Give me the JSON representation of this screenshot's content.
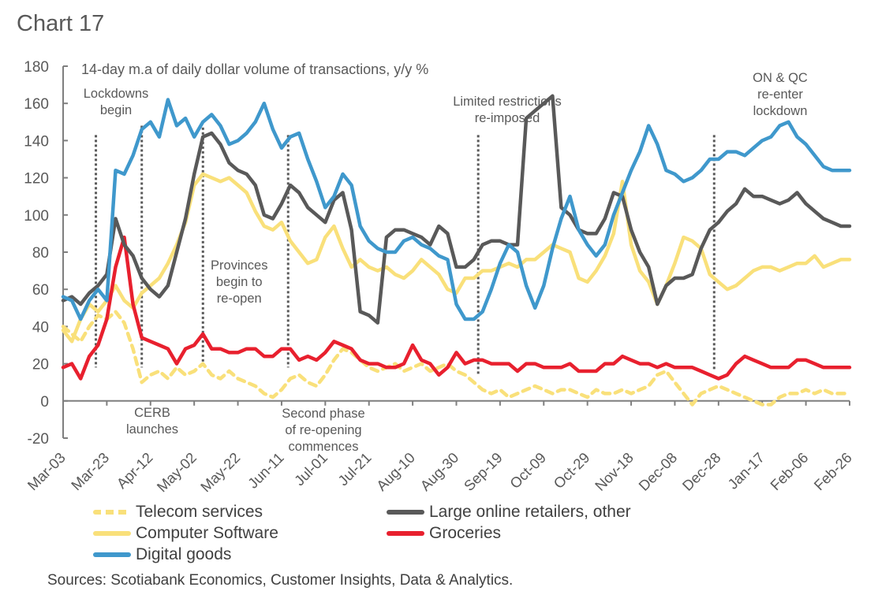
{
  "chart_title": "Chart 17",
  "source_note": "Sources: Scotiabank Economics, Customer Insights, Data & Analytics.",
  "chart_data": {
    "type": "line",
    "title": "Chart 17",
    "subtitle": "14-day m.a of daily dollar volume of transactions, y/y %",
    "xlabel": "",
    "ylabel": "",
    "ylim": [
      -20,
      180
    ],
    "yticks": [
      -20,
      0,
      20,
      40,
      60,
      80,
      100,
      120,
      140,
      160,
      180
    ],
    "ytick_labels": [
      "-20",
      "0",
      "20",
      "40",
      "60",
      "80",
      "100",
      "120",
      "140",
      "160",
      "180"
    ],
    "x_unit": "days since Mar-03",
    "xlim": [
      0,
      360
    ],
    "xticks": [
      0,
      20,
      40,
      60,
      80,
      100,
      120,
      140,
      160,
      180,
      200,
      220,
      240,
      260,
      280,
      300,
      320,
      340,
      360
    ],
    "xtick_labels": [
      "Mar-03",
      "Mar-23",
      "Apr-12",
      "May-02",
      "May-22",
      "Jun-11",
      "Jul-01",
      "Jul-21",
      "Aug-10",
      "Aug-30",
      "Sep-19",
      "Oct-09",
      "Oct-29",
      "Nov-18",
      "Dec-08",
      "Dec-28",
      "Jan-17",
      "Feb-06",
      "Feb-26"
    ],
    "grid": false,
    "legend_position": "bottom",
    "x": [
      0,
      4,
      8,
      12,
      16,
      20,
      24,
      28,
      32,
      36,
      40,
      44,
      48,
      52,
      56,
      60,
      64,
      68,
      72,
      76,
      80,
      84,
      88,
      92,
      96,
      100,
      104,
      108,
      112,
      116,
      120,
      124,
      128,
      132,
      136,
      140,
      144,
      148,
      152,
      156,
      160,
      164,
      168,
      172,
      176,
      180,
      184,
      188,
      192,
      196,
      200,
      204,
      208,
      212,
      216,
      220,
      224,
      228,
      232,
      236,
      240,
      244,
      248,
      252,
      256,
      260,
      264,
      268,
      272,
      276,
      280,
      284,
      288,
      292,
      296,
      300,
      304,
      308,
      312,
      316,
      320,
      324,
      328,
      332,
      336,
      340,
      344,
      348,
      352,
      356,
      360
    ],
    "series": [
      {
        "name": "Telecom services",
        "color": "#F9E07A",
        "style": "dashed",
        "values": [
          40,
          36,
          32,
          40,
          46,
          44,
          48,
          42,
          28,
          10,
          14,
          16,
          12,
          18,
          14,
          16,
          20,
          14,
          12,
          16,
          12,
          10,
          8,
          4,
          2,
          6,
          12,
          14,
          10,
          8,
          14,
          22,
          28,
          26,
          22,
          18,
          16,
          18,
          20,
          16,
          18,
          20,
          16,
          18,
          20,
          16,
          14,
          10,
          6,
          4,
          6,
          2,
          4,
          6,
          8,
          6,
          4,
          6,
          6,
          4,
          2,
          6,
          4,
          4,
          6,
          4,
          6,
          8,
          14,
          16,
          10,
          4,
          -2,
          4,
          6,
          8,
          6,
          4,
          2,
          0,
          -2,
          -2,
          2,
          4,
          4,
          6,
          4,
          6,
          4,
          4,
          4
        ]
      },
      {
        "name": "Large online retailers, other",
        "color": "#595959",
        "style": "solid",
        "values": [
          54,
          56,
          52,
          58,
          62,
          68,
          98,
          84,
          78,
          66,
          60,
          56,
          62,
          80,
          98,
          122,
          142,
          144,
          138,
          128,
          124,
          122,
          116,
          100,
          98,
          106,
          116,
          112,
          104,
          100,
          96,
          108,
          112,
          92,
          48,
          46,
          42,
          88,
          92,
          92,
          90,
          88,
          84,
          94,
          90,
          72,
          72,
          76,
          84,
          86,
          86,
          84,
          84,
          152,
          156,
          160,
          164,
          104,
          100,
          92,
          90,
          90,
          98,
          112,
          110,
          92,
          80,
          72,
          52,
          62,
          66,
          66,
          68,
          82,
          92,
          96,
          102,
          106,
          114,
          110,
          110,
          108,
          106,
          108,
          112,
          106,
          102,
          98,
          96,
          94,
          94
        ]
      },
      {
        "name": "Computer Software",
        "color": "#F9E07A",
        "style": "solid",
        "values": [
          38,
          32,
          44,
          52,
          48,
          54,
          62,
          54,
          50,
          58,
          62,
          66,
          74,
          84,
          96,
          116,
          122,
          120,
          118,
          120,
          116,
          112,
          102,
          94,
          92,
          96,
          86,
          80,
          74,
          76,
          88,
          94,
          82,
          72,
          76,
          72,
          70,
          72,
          68,
          66,
          70,
          76,
          72,
          68,
          60,
          58,
          66,
          66,
          70,
          70,
          72,
          74,
          72,
          76,
          76,
          80,
          84,
          82,
          80,
          66,
          64,
          70,
          78,
          90,
          118,
          84,
          70,
          64,
          52,
          62,
          74,
          88,
          86,
          82,
          68,
          64,
          60,
          62,
          66,
          70,
          72,
          72,
          70,
          72,
          74,
          74,
          78,
          72,
          74,
          76,
          76
        ]
      },
      {
        "name": "Groceries",
        "color": "#E8202E",
        "style": "solid",
        "values": [
          18,
          20,
          12,
          24,
          30,
          44,
          72,
          88,
          52,
          34,
          32,
          30,
          28,
          20,
          28,
          30,
          36,
          28,
          28,
          26,
          26,
          28,
          28,
          24,
          24,
          28,
          28,
          22,
          24,
          22,
          26,
          32,
          30,
          28,
          22,
          20,
          20,
          18,
          18,
          20,
          30,
          22,
          20,
          14,
          18,
          26,
          20,
          22,
          22,
          20,
          20,
          20,
          16,
          20,
          20,
          18,
          18,
          18,
          20,
          16,
          16,
          16,
          20,
          20,
          24,
          22,
          20,
          20,
          18,
          20,
          18,
          18,
          18,
          16,
          14,
          12,
          14,
          20,
          24,
          22,
          20,
          18,
          18,
          18,
          22,
          22,
          20,
          18,
          18,
          18,
          18
        ]
      },
      {
        "name": "Digital goods",
        "color": "#3F98CC",
        "style": "solid",
        "values": [
          56,
          54,
          44,
          54,
          60,
          54,
          124,
          122,
          132,
          146,
          150,
          142,
          162,
          148,
          152,
          142,
          150,
          154,
          148,
          138,
          140,
          144,
          150,
          160,
          146,
          136,
          142,
          144,
          130,
          118,
          104,
          110,
          122,
          116,
          94,
          86,
          82,
          80,
          80,
          86,
          88,
          84,
          82,
          78,
          76,
          52,
          44,
          44,
          48,
          60,
          74,
          84,
          80,
          62,
          50,
          62,
          82,
          98,
          110,
          92,
          84,
          78,
          84,
          100,
          112,
          124,
          134,
          148,
          138,
          124,
          122,
          118,
          120,
          124,
          130,
          130,
          134,
          134,
          132,
          136,
          140,
          142,
          148,
          150,
          142,
          138,
          132,
          126,
          124,
          124,
          124
        ]
      }
    ],
    "annotations": [
      {
        "x": 15,
        "label": "Lockdowns\nbegin",
        "line_from": 18,
        "line_to": 143,
        "text_pos": "top"
      },
      {
        "x": 36,
        "label": "CERB\nlaunches",
        "line_from": 18,
        "line_to": 148,
        "text_pos": "below-axis"
      },
      {
        "x": 64,
        "label": "Provinces\nbegin to\nre-open",
        "line_from": 18,
        "line_to": 147,
        "text_pos": "middle"
      },
      {
        "x": 103,
        "label": "Second phase\nof re-opening\ncommences",
        "line_from": 18,
        "line_to": 143,
        "text_pos": "below-axis"
      },
      {
        "x": 190,
        "label": "Limited restrictions\nre-imposed",
        "line_from": 14,
        "line_to": 143,
        "text_pos": "top"
      },
      {
        "x": 298,
        "label": "ON & QC\nre-enter\nlockdown",
        "line_from": 16,
        "line_to": 143,
        "text_pos": "top-right"
      }
    ]
  },
  "legend": {
    "items": [
      {
        "label": "Telecom services",
        "color": "#F9E07A",
        "style": "dashed"
      },
      {
        "label": "Large online retailers, other",
        "color": "#595959",
        "style": "solid"
      },
      {
        "label": "Computer Software",
        "color": "#F9E07A",
        "style": "solid"
      },
      {
        "label": "Groceries",
        "color": "#E8202E",
        "style": "solid"
      },
      {
        "label": "Digital goods",
        "color": "#3F98CC",
        "style": "solid"
      }
    ]
  }
}
